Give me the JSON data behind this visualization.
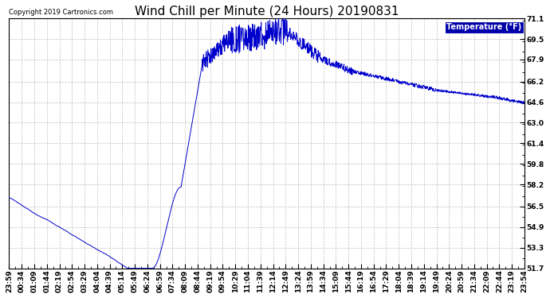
{
  "title": "Wind Chill per Minute (24 Hours) 20190831",
  "copyright": "Copyright 2019 Cartronics.com",
  "legend_label": "Temperature (°F)",
  "line_color": "#0000CC",
  "background_color": "#ffffff",
  "grid_color": "#c0c0c0",
  "ylim": [
    51.7,
    71.1
  ],
  "yticks": [
    51.7,
    53.3,
    54.9,
    56.5,
    58.2,
    59.8,
    61.4,
    63.0,
    64.6,
    66.2,
    67.9,
    69.5,
    71.1
  ],
  "x_labels": [
    "23:59",
    "00:34",
    "01:09",
    "01:44",
    "02:19",
    "02:54",
    "03:29",
    "04:04",
    "04:39",
    "05:14",
    "05:49",
    "06:24",
    "06:59",
    "07:34",
    "08:09",
    "08:44",
    "09:19",
    "09:54",
    "10:29",
    "11:04",
    "11:39",
    "12:14",
    "12:49",
    "13:24",
    "13:59",
    "14:34",
    "15:09",
    "15:44",
    "16:19",
    "16:54",
    "17:29",
    "18:04",
    "18:39",
    "19:14",
    "19:49",
    "20:24",
    "20:59",
    "21:34",
    "22:09",
    "22:44",
    "23:19",
    "23:54"
  ],
  "title_fontsize": 11,
  "axis_fontsize": 6.5,
  "fig_width": 6.9,
  "fig_height": 3.75,
  "dpi": 100
}
